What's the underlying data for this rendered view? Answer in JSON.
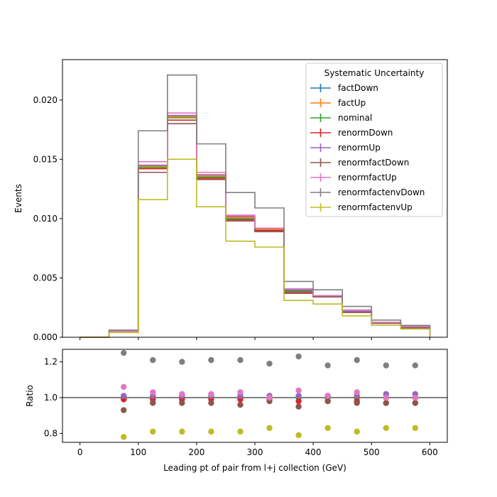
{
  "chart_data": {
    "type": "line",
    "xlabel": "Leading pt of pair from l+j collection (GeV)",
    "x_ticks": [
      "0",
      "100",
      "200",
      "300",
      "400",
      "500",
      "600"
    ],
    "top": {
      "ylabel": "Events",
      "ylim": [
        0,
        0.0234
      ],
      "y_ticks": [
        "0.000",
        "0.005",
        "0.010",
        "0.015",
        "0.020"
      ],
      "y_tick_values": [
        0,
        0.005,
        0.01,
        0.015,
        0.02
      ]
    },
    "bottom": {
      "ylabel": "Ratio",
      "ylim": [
        0.75,
        1.27
      ],
      "y_ticks": [
        "0.8",
        "1.0",
        "1.2"
      ],
      "y_tick_values": [
        0.8,
        1.0,
        1.2
      ],
      "reference_line": 1.0
    },
    "xlim": [
      -30,
      630
    ],
    "bin_edges": [
      0,
      50,
      100,
      150,
      200,
      250,
      300,
      350,
      400,
      450,
      500,
      550,
      600
    ],
    "ratio_x": [
      75,
      125,
      175,
      225,
      275,
      325,
      375,
      425,
      475,
      525,
      575
    ],
    "legend": {
      "title": "Systematic Uncertainty",
      "position": "top-right"
    },
    "series": [
      {
        "name": "factDown",
        "color": "#1f77b4",
        "values": [
          0,
          0.0005,
          0.0144,
          0.0186,
          0.0136,
          0.0101,
          0.0091,
          0.004,
          0.0035,
          0.0022,
          0.00125,
          0.0009
        ],
        "ratio": [
          1.0,
          1.0,
          1.0,
          1.0,
          1.0,
          1.0,
          1.0,
          1.0,
          1.0,
          1.0,
          1.0
        ]
      },
      {
        "name": "factUp",
        "color": "#ff7f0e",
        "values": [
          0,
          0.0005,
          0.0144,
          0.0186,
          0.0136,
          0.0101,
          0.0091,
          0.0039,
          0.0035,
          0.0022,
          0.00125,
          0.0009
        ],
        "ratio": [
          1.0,
          1.0,
          1.0,
          1.0,
          1.0,
          1.0,
          1.0,
          1.0,
          1.0,
          1.0,
          1.0
        ]
      },
      {
        "name": "nominal",
        "color": "#2ca02c",
        "values": [
          0,
          0.0005,
          0.0143,
          0.0185,
          0.0135,
          0.01,
          0.009,
          0.0039,
          0.0034,
          0.0022,
          0.00122,
          0.0009
        ],
        "ratio": [
          1.0,
          1.0,
          1.0,
          1.0,
          1.0,
          1.0,
          1.0,
          1.0,
          1.0,
          1.0,
          1.0
        ]
      },
      {
        "name": "renormDown",
        "color": "#d62728",
        "values": [
          0,
          0.0005,
          0.0142,
          0.0183,
          0.0134,
          0.0099,
          0.009,
          0.0038,
          0.0034,
          0.0021,
          0.00118,
          0.0008
        ],
        "ratio": [
          0.99,
          0.99,
          0.99,
          0.99,
          0.99,
          0.99,
          0.98,
          0.98,
          0.98,
          0.97,
          0.97
        ]
      },
      {
        "name": "renormUp",
        "color": "#9467bd",
        "values": [
          0,
          0.0005,
          0.0145,
          0.0187,
          0.0137,
          0.0102,
          0.0092,
          0.004,
          0.0035,
          0.0022,
          0.00125,
          0.0009
        ],
        "ratio": [
          1.01,
          1.01,
          1.01,
          1.01,
          1.01,
          1.01,
          1.01,
          1.01,
          1.01,
          1.02,
          1.02
        ]
      },
      {
        "name": "renormfactDown",
        "color": "#8c564b",
        "values": [
          0,
          0.0005,
          0.0139,
          0.018,
          0.0133,
          0.0098,
          0.0089,
          0.0037,
          0.0034,
          0.0021,
          0.00118,
          0.0008
        ],
        "ratio": [
          0.93,
          0.97,
          0.97,
          0.97,
          0.96,
          0.98,
          0.95,
          0.98,
          0.97,
          0.97,
          0.97
        ]
      },
      {
        "name": "renormfactUp",
        "color": "#e377c2",
        "values": [
          0,
          0.0005,
          0.0148,
          0.0189,
          0.0139,
          0.0103,
          0.0092,
          0.0041,
          0.0035,
          0.0023,
          0.00125,
          0.0009
        ],
        "ratio": [
          1.06,
          1.03,
          1.02,
          1.02,
          1.03,
          1.0,
          1.04,
          1.01,
          1.03,
          1.0,
          1.0
        ]
      },
      {
        "name": "renormfactenvDown",
        "color": "#7f7f7f",
        "values": [
          0,
          0.0006,
          0.0174,
          0.0221,
          0.0163,
          0.0122,
          0.0109,
          0.0047,
          0.004,
          0.0026,
          0.00145,
          0.001
        ],
        "ratio": [
          1.25,
          1.21,
          1.2,
          1.21,
          1.21,
          1.19,
          1.23,
          1.18,
          1.21,
          1.18,
          1.18
        ]
      },
      {
        "name": "renormfactenvUp",
        "color": "#bcbd22",
        "values": [
          0,
          0.0004,
          0.0116,
          0.015,
          0.011,
          0.0081,
          0.0076,
          0.0031,
          0.0028,
          0.0018,
          0.00101,
          0.0007
        ],
        "ratio": [
          0.78,
          0.81,
          0.81,
          0.81,
          0.81,
          0.83,
          0.79,
          0.83,
          0.81,
          0.83,
          0.83
        ]
      }
    ]
  }
}
